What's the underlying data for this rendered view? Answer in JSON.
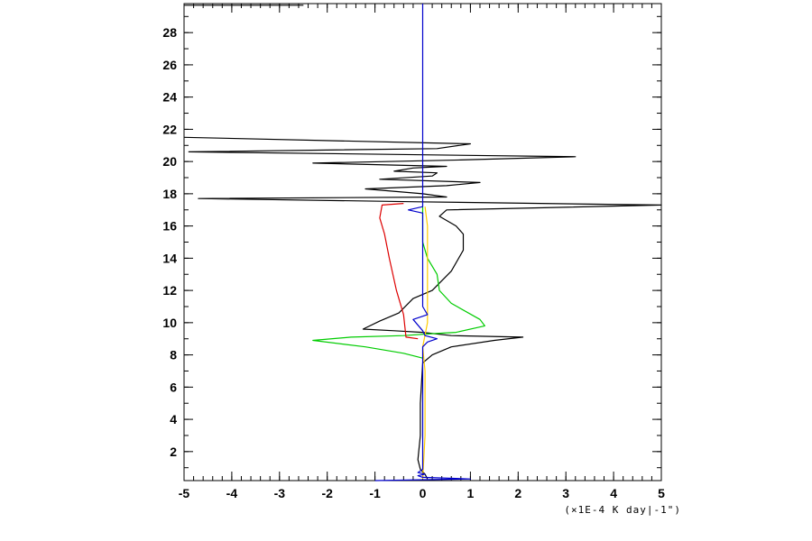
{
  "chart_data": {
    "type": "line",
    "title": "",
    "xlabel": "",
    "ylabel": "",
    "x_unit_label": "(×1E-4 K day|-1\")",
    "xlim": [
      -5,
      5
    ],
    "ylim": [
      0.2,
      29.8
    ],
    "xticks": [
      -5,
      -4,
      -3,
      -2,
      -1,
      0,
      1,
      2,
      3,
      4,
      5
    ],
    "yticks": [
      2,
      4,
      6,
      8,
      10,
      12,
      14,
      16,
      18,
      20,
      22,
      24,
      26,
      28
    ],
    "grid": false,
    "series": [
      {
        "color": "#000000",
        "points": [
          [
            0.1,
            0.3
          ],
          [
            0.05,
            0.6
          ],
          [
            -0.05,
            0.9
          ],
          [
            -0.1,
            1.5
          ],
          [
            -0.05,
            3
          ],
          [
            -0.05,
            5
          ],
          [
            0,
            7.5
          ],
          [
            0.2,
            8.0
          ],
          [
            0.6,
            8.5
          ],
          [
            1.5,
            8.9
          ],
          [
            2.1,
            9.1
          ],
          [
            0.6,
            9.2
          ],
          [
            0.0,
            9.4
          ],
          [
            -0.6,
            9.5
          ],
          [
            -1.25,
            9.6
          ],
          [
            -0.9,
            10.1
          ],
          [
            -0.5,
            10.6
          ],
          [
            -0.2,
            11.5
          ],
          [
            0.2,
            12.0
          ],
          [
            0.6,
            13.2
          ],
          [
            0.85,
            14.5
          ],
          [
            0.85,
            15.5
          ],
          [
            0.7,
            16.0
          ],
          [
            0.35,
            16.6
          ],
          [
            0.5,
            17.0
          ],
          [
            5.0,
            17.3
          ],
          [
            -0.1,
            17.5
          ],
          [
            -4.7,
            17.7
          ],
          [
            0.5,
            17.8
          ],
          [
            0.0,
            18.0
          ],
          [
            -1.2,
            18.3
          ],
          [
            0.5,
            18.5
          ],
          [
            1.2,
            18.7
          ],
          [
            -0.9,
            18.9
          ],
          [
            0.2,
            19.1
          ],
          [
            0.3,
            19.3
          ],
          [
            -0.6,
            19.4
          ],
          [
            -0.2,
            19.6
          ],
          [
            0.5,
            19.7
          ],
          [
            -2.3,
            19.9
          ],
          [
            0.8,
            20.1
          ],
          [
            3.2,
            20.3
          ],
          [
            -4.9,
            20.6
          ],
          [
            0.3,
            20.8
          ],
          [
            1.0,
            21.1
          ],
          [
            -5.0,
            21.5
          ]
        ]
      },
      {
        "color": "#00cc00",
        "points": [
          [
            0.0,
            7.8
          ],
          [
            -0.4,
            8.1
          ],
          [
            -1.2,
            8.5
          ],
          [
            -2.3,
            8.9
          ],
          [
            -1.5,
            9.1
          ],
          [
            -0.4,
            9.2
          ],
          [
            0.1,
            9.3
          ],
          [
            0.7,
            9.4
          ],
          [
            1.3,
            9.8
          ],
          [
            1.2,
            10.2
          ],
          [
            0.6,
            11.2
          ],
          [
            0.35,
            12.0
          ],
          [
            0.3,
            13.0
          ],
          [
            0.1,
            14.0
          ],
          [
            0.0,
            15.0
          ],
          [
            0.0,
            17.2
          ]
        ]
      },
      {
        "color": "#dd0000",
        "points": [
          [
            -0.1,
            9.0
          ],
          [
            -0.35,
            9.1
          ],
          [
            -0.4,
            10.5
          ],
          [
            -0.55,
            12.0
          ],
          [
            -0.7,
            14.0
          ],
          [
            -0.8,
            15.5
          ],
          [
            -0.9,
            16.5
          ],
          [
            -0.85,
            17.3
          ],
          [
            -0.4,
            17.4
          ]
        ]
      },
      {
        "color": "#ffcc00",
        "points": [
          [
            0.0,
            0.3
          ],
          [
            0.05,
            3
          ],
          [
            0.05,
            7
          ],
          [
            0.0,
            8.5
          ],
          [
            0.1,
            10
          ],
          [
            0.1,
            12
          ],
          [
            0.1,
            14
          ],
          [
            0.1,
            16
          ],
          [
            0.05,
            17.2
          ]
        ]
      },
      {
        "color": "#0000cc",
        "points": [
          [
            -1.0,
            0.2
          ],
          [
            1.0,
            0.3
          ],
          [
            0.0,
            0.4
          ],
          [
            -0.1,
            0.5
          ],
          [
            0.05,
            0.6
          ],
          [
            -0.1,
            0.7
          ],
          [
            0.0,
            0.9
          ],
          [
            0.0,
            8.5
          ],
          [
            0.1,
            8.8
          ],
          [
            0.3,
            9.0
          ],
          [
            0.05,
            9.2
          ],
          [
            0.0,
            9.5
          ],
          [
            -0.2,
            10.2
          ],
          [
            0.1,
            10.5
          ],
          [
            0.0,
            11.0
          ],
          [
            0.0,
            16.8
          ],
          [
            -0.3,
            17.0
          ],
          [
            0.0,
            17.2
          ],
          [
            0.0,
            29.8
          ]
        ]
      },
      {
        "color": "#000000",
        "points": [
          [
            -5.0,
            29.7
          ],
          [
            -2.5,
            29.7
          ]
        ]
      }
    ]
  }
}
